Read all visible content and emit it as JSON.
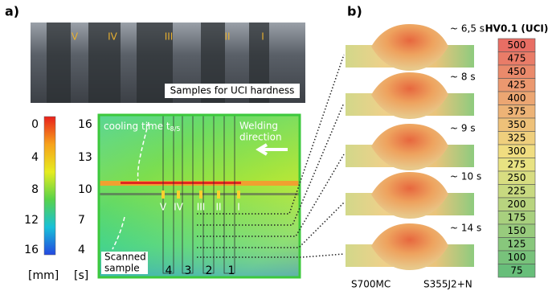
{
  "panel_a": {
    "label": "a)",
    "photo": {
      "numerals": [
        "V",
        "IV",
        "III",
        "II",
        "I"
      ],
      "caption": "Samples for UCI hardness"
    },
    "colorbar": {
      "mm_ticks": [
        0,
        4,
        8,
        12,
        16
      ],
      "s_ticks": [
        16,
        13,
        10,
        7,
        4
      ],
      "mm_unit": "[mm]",
      "s_unit": "[s]"
    },
    "map": {
      "cooling_label": "cooling time t",
      "cooling_sub": "8/5",
      "welding_label": [
        "Welding",
        "direction"
      ],
      "numerals": [
        "V",
        "IV",
        "III",
        "II",
        "I"
      ],
      "scanned_label": [
        "Scanned",
        "sample"
      ],
      "sample_numbers": [
        "4",
        "3",
        "2",
        "1"
      ]
    }
  },
  "panel_b": {
    "label": "b)",
    "times": [
      "~ 6,5 s",
      "~ 8 s",
      "~ 9 s",
      "~ 10 s",
      "~ 14 s"
    ],
    "left_material": "S700MC",
    "right_material": "S355J2+N",
    "scale_title": "HV0.1 (UCI)",
    "scale_values": [
      500,
      475,
      450,
      425,
      400,
      375,
      350,
      325,
      300,
      275,
      250,
      225,
      200,
      175,
      150,
      125,
      100,
      75
    ]
  }
}
